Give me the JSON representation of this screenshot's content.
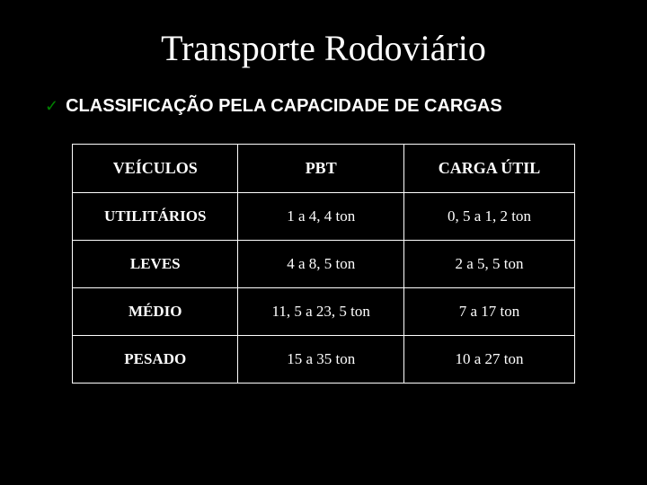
{
  "title": "Transporte Rodoviário",
  "subtitle": "CLASSIFICAÇÃO PELA CAPACIDADE  DE CARGAS",
  "check_glyph": "✓",
  "colors": {
    "background": "#000000",
    "text": "#ffffff",
    "border": "#ffffff",
    "check": "#008000"
  },
  "table": {
    "columns": [
      "VEÍCULOS",
      "PBT",
      "CARGA ÚTIL"
    ],
    "rows": [
      [
        "UTILITÁRIOS",
        "1 a 4, 4 ton",
        "0, 5 a 1, 2 ton"
      ],
      [
        "LEVES",
        "4 a 8, 5 ton",
        "2 a 5, 5 ton"
      ],
      [
        "MÉDIO",
        "11, 5 a 23, 5 ton",
        "7 a 17 ton"
      ],
      [
        "PESADO",
        "15 a 35 ton",
        "10 a 27 ton"
      ]
    ],
    "header_fontsize": 18,
    "cell_fontsize": 17,
    "font_family": "Times New Roman"
  },
  "title_fontsize": 40,
  "subtitle_fontsize": 20
}
